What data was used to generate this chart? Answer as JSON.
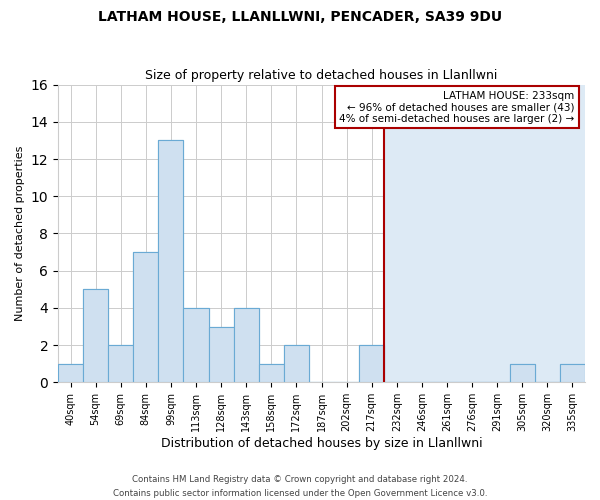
{
  "title": "LATHAM HOUSE, LLANLLWNI, PENCADER, SA39 9DU",
  "subtitle": "Size of property relative to detached houses in Llanllwni",
  "xlabel": "Distribution of detached houses by size in Llanllwni",
  "ylabel": "Number of detached properties",
  "bin_labels": [
    "40sqm",
    "54sqm",
    "69sqm",
    "84sqm",
    "99sqm",
    "113sqm",
    "128sqm",
    "143sqm",
    "158sqm",
    "172sqm",
    "187sqm",
    "202sqm",
    "217sqm",
    "232sqm",
    "246sqm",
    "261sqm",
    "276sqm",
    "291sqm",
    "305sqm",
    "320sqm",
    "335sqm"
  ],
  "bar_heights": [
    1,
    5,
    2,
    7,
    13,
    4,
    3,
    4,
    1,
    2,
    0,
    0,
    2,
    0,
    0,
    0,
    0,
    0,
    1,
    0,
    1
  ],
  "bar_color": "#cfe0f0",
  "bar_edge_color": "#6aaad4",
  "vline_x_label": "232sqm",
  "vline_color": "#aa0000",
  "shade_right_color": "#ddeaf5",
  "ylim": [
    0,
    16
  ],
  "yticks": [
    0,
    2,
    4,
    6,
    8,
    10,
    12,
    14,
    16
  ],
  "annotation_title": "LATHAM HOUSE: 233sqm",
  "annotation_line1": "← 96% of detached houses are smaller (43)",
  "annotation_line2": "4% of semi-detached houses are larger (2) →",
  "annotation_box_color": "#ffffff",
  "annotation_box_edge": "#aa0000",
  "footer_line1": "Contains HM Land Registry data © Crown copyright and database right 2024.",
  "footer_line2": "Contains public sector information licensed under the Open Government Licence v3.0.",
  "background_color": "#ffffff",
  "grid_color": "#cccccc",
  "title_fontsize": 10,
  "subtitle_fontsize": 9,
  "ylabel_fontsize": 8,
  "xlabel_fontsize": 9
}
